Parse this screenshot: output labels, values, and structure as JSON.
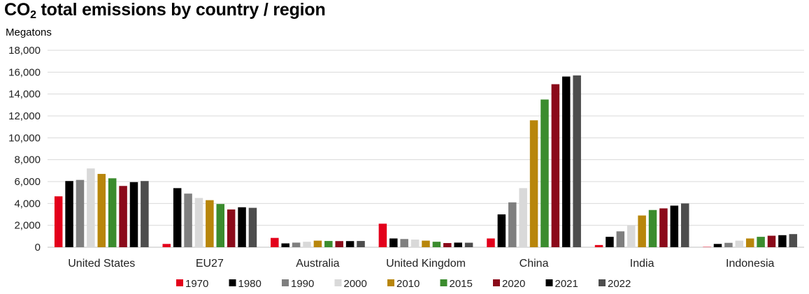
{
  "chart_data": {
    "type": "bar",
    "title_main": "CO",
    "title_sub": "2",
    "title_rest": " total emissions by country / region",
    "ylabel": "Megatons",
    "ylim": [
      0,
      18000
    ],
    "yticks": [
      "0",
      "2,000",
      "4,000",
      "6,000",
      "8,000",
      "10,000",
      "12,000",
      "14,000",
      "16,000",
      "18,000"
    ],
    "grid": true,
    "legend_position": "bottom",
    "categories": [
      "United States",
      "EU27",
      "Australia",
      "United Kingdom",
      "China",
      "India",
      "Indonesia"
    ],
    "series": [
      {
        "name": "1970",
        "color": "#e3001b",
        "values": [
          4650,
          300,
          850,
          2150,
          800,
          200,
          30
        ]
      },
      {
        "name": "1980",
        "color": "#000000",
        "values": [
          6050,
          5400,
          350,
          800,
          3000,
          950,
          300
        ]
      },
      {
        "name": "1990",
        "color": "#7f7f7f",
        "values": [
          6150,
          4900,
          420,
          750,
          4100,
          1450,
          400
        ]
      },
      {
        "name": "2000",
        "color": "#d9d9d9",
        "values": [
          7200,
          4500,
          500,
          700,
          5400,
          2000,
          600
        ]
      },
      {
        "name": "2010",
        "color": "#b8860b",
        "values": [
          6700,
          4300,
          600,
          600,
          11600,
          2900,
          800
        ]
      },
      {
        "name": "2015",
        "color": "#3b8c2e",
        "values": [
          6300,
          3950,
          570,
          500,
          13500,
          3400,
          950
        ]
      },
      {
        "name": "2020",
        "color": "#8b0a1a",
        "values": [
          5600,
          3450,
          560,
          380,
          14900,
          3550,
          1050
        ]
      },
      {
        "name": "2021",
        "color": "#000000",
        "values": [
          5950,
          3650,
          560,
          420,
          15600,
          3800,
          1100
        ]
      },
      {
        "name": "2022",
        "color": "#4d4d4d",
        "values": [
          6050,
          3600,
          570,
          410,
          15700,
          4000,
          1200
        ]
      }
    ]
  }
}
